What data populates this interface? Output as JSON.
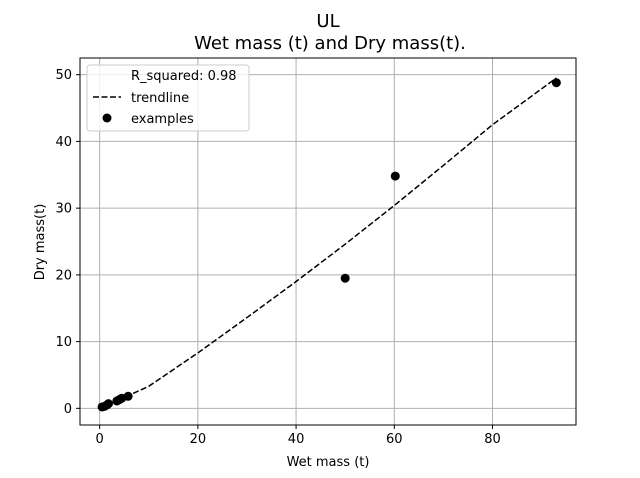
{
  "chart_data": {
    "type": "scatter",
    "title": "UL",
    "subtitle": "Wet mass (t) and Dry mass(t).",
    "xlabel": "Wet mass (t)",
    "ylabel": "Dry mass(t)",
    "xlim": [
      -4,
      97
    ],
    "ylim": [
      -2.5,
      52.5
    ],
    "xticks": [
      0,
      20,
      40,
      60,
      80
    ],
    "yticks": [
      0,
      10,
      20,
      30,
      40,
      50
    ],
    "grid": true,
    "legend_position": "top-left",
    "legend": {
      "r_squared_label": "R_squared: 0.98",
      "trendline_label": "trendline",
      "examples_label": "examples"
    },
    "series": [
      {
        "name": "examples",
        "kind": "scatter",
        "color": "#000000",
        "points": [
          {
            "x": 0.5,
            "y": 0.2
          },
          {
            "x": 1.0,
            "y": 0.3
          },
          {
            "x": 1.5,
            "y": 0.5
          },
          {
            "x": 1.8,
            "y": 0.7
          },
          {
            "x": 3.5,
            "y": 1.1
          },
          {
            "x": 4.0,
            "y": 1.3
          },
          {
            "x": 4.5,
            "y": 1.5
          },
          {
            "x": 5.8,
            "y": 1.8
          },
          {
            "x": 50.0,
            "y": 19.5
          },
          {
            "x": 60.2,
            "y": 34.8
          },
          {
            "x": 93.0,
            "y": 48.8
          }
        ]
      },
      {
        "name": "trendline",
        "kind": "line",
        "style": "dashed",
        "color": "#000000",
        "points": [
          {
            "x": 0.5,
            "y": 0.14
          },
          {
            "x": 10.0,
            "y": 3.3
          },
          {
            "x": 20.0,
            "y": 8.3
          },
          {
            "x": 30.0,
            "y": 13.6
          },
          {
            "x": 40.0,
            "y": 19.0
          },
          {
            "x": 50.0,
            "y": 24.6
          },
          {
            "x": 60.0,
            "y": 30.4
          },
          {
            "x": 70.0,
            "y": 36.4
          },
          {
            "x": 80.0,
            "y": 42.5
          },
          {
            "x": 93.0,
            "y": 49.5
          }
        ]
      }
    ]
  }
}
